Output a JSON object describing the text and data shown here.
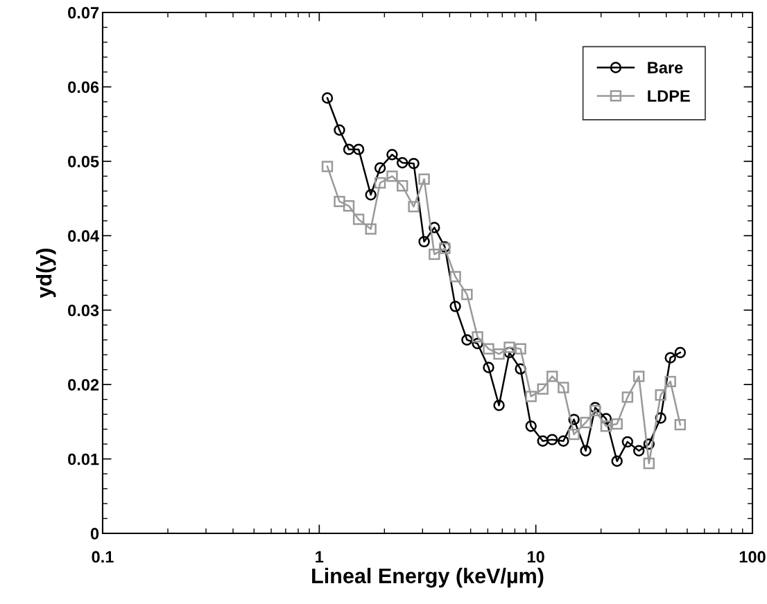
{
  "chart_data": {
    "type": "line",
    "xlabel": "Lineal Energy (keV/µm)",
    "ylabel": "yd(y)",
    "x": [
      1.09,
      1.24,
      1.37,
      1.52,
      1.73,
      1.91,
      2.17,
      2.42,
      2.73,
      3.05,
      3.4,
      3.8,
      4.25,
      4.81,
      5.38,
      6.05,
      6.76,
      7.55,
      8.5,
      9.5,
      10.77,
      11.9,
      13.4,
      15.0,
      17.0,
      18.8,
      21.1,
      23.7,
      26.5,
      29.9,
      33.3,
      37.7,
      41.8,
      46.4
    ],
    "series": [
      {
        "name": "Bare",
        "color": "#000000",
        "marker": "circle",
        "values": [
          0.0585,
          0.0542,
          0.0516,
          0.0516,
          0.0455,
          0.0491,
          0.0509,
          0.0498,
          0.0497,
          0.0392,
          0.0411,
          0.0385,
          0.0305,
          0.026,
          0.0255,
          0.0223,
          0.0172,
          0.0243,
          0.0221,
          0.0144,
          0.0124,
          0.0126,
          0.0124,
          0.0153,
          0.0111,
          0.0169,
          0.0154,
          0.0097,
          0.0123,
          0.0111,
          0.012,
          0.0155,
          0.0236,
          0.0243
        ]
      },
      {
        "name": "LDPE",
        "color": "#999999",
        "marker": "square",
        "values": [
          0.0493,
          0.0446,
          0.044,
          0.0422,
          0.0409,
          0.0471,
          0.048,
          0.0467,
          0.0439,
          0.0476,
          0.0375,
          0.0383,
          0.0345,
          0.0321,
          0.0264,
          0.0248,
          0.0241,
          0.025,
          0.0248,
          0.0184,
          0.0194,
          0.0211,
          0.0196,
          0.0133,
          0.0149,
          0.0165,
          0.0144,
          0.0147,
          0.0183,
          0.0211,
          0.0094,
          0.0186,
          0.0204,
          0.0146
        ]
      }
    ],
    "log": "x",
    "xlim": [
      0.1,
      100
    ],
    "xticks": [
      0.1,
      1,
      10,
      100
    ],
    "ylim": [
      0,
      0.07
    ],
    "yticks": [
      0,
      0.01,
      0.02,
      0.03,
      0.04,
      0.05,
      0.06,
      0.07
    ],
    "grid": false,
    "legend": "top right",
    "line_style": "solid"
  }
}
